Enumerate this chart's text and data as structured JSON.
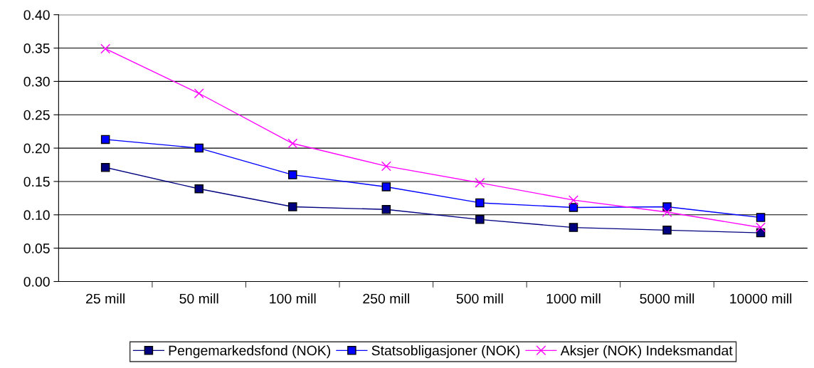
{
  "chart_data": {
    "type": "line",
    "categories": [
      "25 mill",
      "50 mill",
      "100 mill",
      "250 mill",
      "500 mill",
      "1000 mill",
      "5000 mill",
      "10000 mill"
    ],
    "series": [
      {
        "name": "Pengemarkedsfond (NOK)",
        "color": "#000080",
        "marker": "square",
        "values": [
          0.171,
          0.139,
          0.112,
          0.108,
          0.093,
          0.081,
          0.077,
          0.073
        ]
      },
      {
        "name": "Statsobligasjoner (NOK)",
        "color": "#0000ff",
        "marker": "square",
        "values": [
          0.213,
          0.2,
          0.16,
          0.142,
          0.118,
          0.111,
          0.112,
          0.096
        ]
      },
      {
        "name": "Aksjer (NOK) Indeksmandat",
        "color": "#ff00ff",
        "marker": "cross",
        "values": [
          0.349,
          0.282,
          0.207,
          0.173,
          0.148,
          0.122,
          0.104,
          0.081
        ]
      }
    ],
    "ylim": [
      0,
      0.4
    ],
    "yticks": [
      {
        "value": 0,
        "label": "0.00"
      },
      {
        "value": 0.05,
        "label": "0.05"
      },
      {
        "value": 0.1,
        "label": "0.10"
      },
      {
        "value": 0.15,
        "label": "0.15"
      },
      {
        "value": 0.2,
        "label": "0.20"
      },
      {
        "value": 0.25,
        "label": "0.25"
      },
      {
        "value": 0.3,
        "label": "0.30"
      },
      {
        "value": 0.35,
        "label": "0.35"
      },
      {
        "value": 0.4,
        "label": "0.40"
      }
    ],
    "grid": "y",
    "legend": "bottom"
  }
}
